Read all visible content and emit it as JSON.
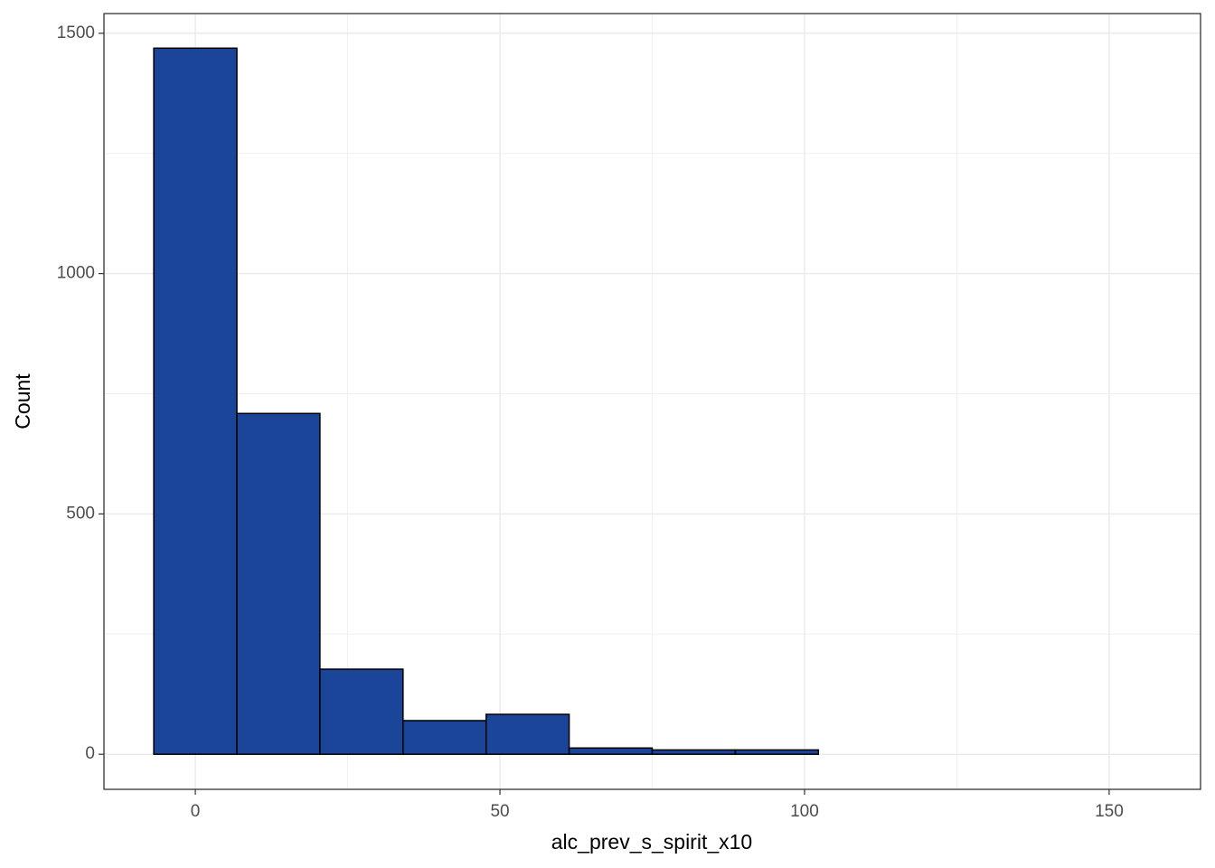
{
  "chart_data": {
    "type": "histogram",
    "x_label": "alc_prev_s_spirit_x10",
    "y_label": "Count",
    "bins": [
      -6.82,
      6.82,
      20.45,
      34.09,
      47.73,
      61.36,
      75,
      88.64,
      102.27,
      115.91,
      129.55,
      143.18,
      156.82
    ],
    "values": [
      1469,
      709,
      177,
      70,
      83,
      13,
      9,
      9,
      0,
      0,
      0,
      0
    ],
    "color": "#1a4599",
    "edge_color": "#000000",
    "xlim": [
      -15,
      165
    ],
    "xticks": [
      0,
      50,
      100,
      150
    ],
    "ylim": [
      -73,
      1541
    ],
    "yticks": [
      0,
      500,
      1000,
      1500
    ],
    "grid": true
  }
}
